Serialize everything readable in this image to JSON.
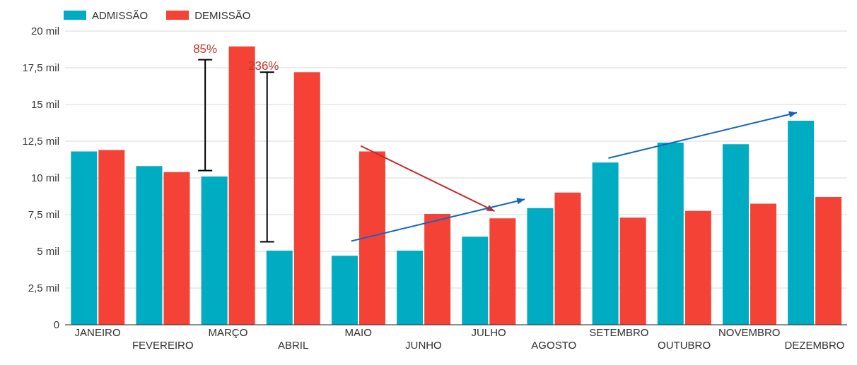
{
  "chart_data": {
    "type": "bar",
    "categories": [
      "JANEIRO",
      "FEVEREIRO",
      "MARÇO",
      "ABRIL",
      "MAIO",
      "JUNHO",
      "JULHO",
      "AGOSTO",
      "SETEMBRO",
      "OUTUBRO",
      "NOVEMBRO",
      "DEZEMBRO"
    ],
    "series": [
      {
        "name": "ADMISSÃO",
        "color": "#00acc1",
        "values": [
          11.8,
          10.8,
          10.1,
          5.05,
          4.7,
          5.05,
          6.0,
          7.95,
          11.05,
          12.4,
          12.3,
          13.9
        ]
      },
      {
        "name": "DEMISSÃO",
        "color": "#f44336",
        "values": [
          11.9,
          10.4,
          18.95,
          17.2,
          11.8,
          7.55,
          7.25,
          9.0,
          7.3,
          7.75,
          8.25,
          8.7
        ]
      }
    ],
    "ylim": [
      0,
      20
    ],
    "yticks": [
      0,
      {
        "value": 2.5,
        "label": "2,5 mil"
      },
      {
        "value": 5,
        "label": "5 mil"
      },
      {
        "value": 7.5,
        "label": "7,5 mil"
      },
      {
        "value": 10,
        "label": "10 mil"
      },
      {
        "value": 12.5,
        "label": "12,5 mil"
      },
      {
        "value": 15,
        "label": "15 mil"
      },
      {
        "value": 17.5,
        "label": "17,5 mil"
      },
      {
        "value": 20,
        "label": "20 mil"
      }
    ],
    "grid": "y",
    "legend": "top left",
    "annotations": [
      "85%",
      "236%"
    ]
  }
}
